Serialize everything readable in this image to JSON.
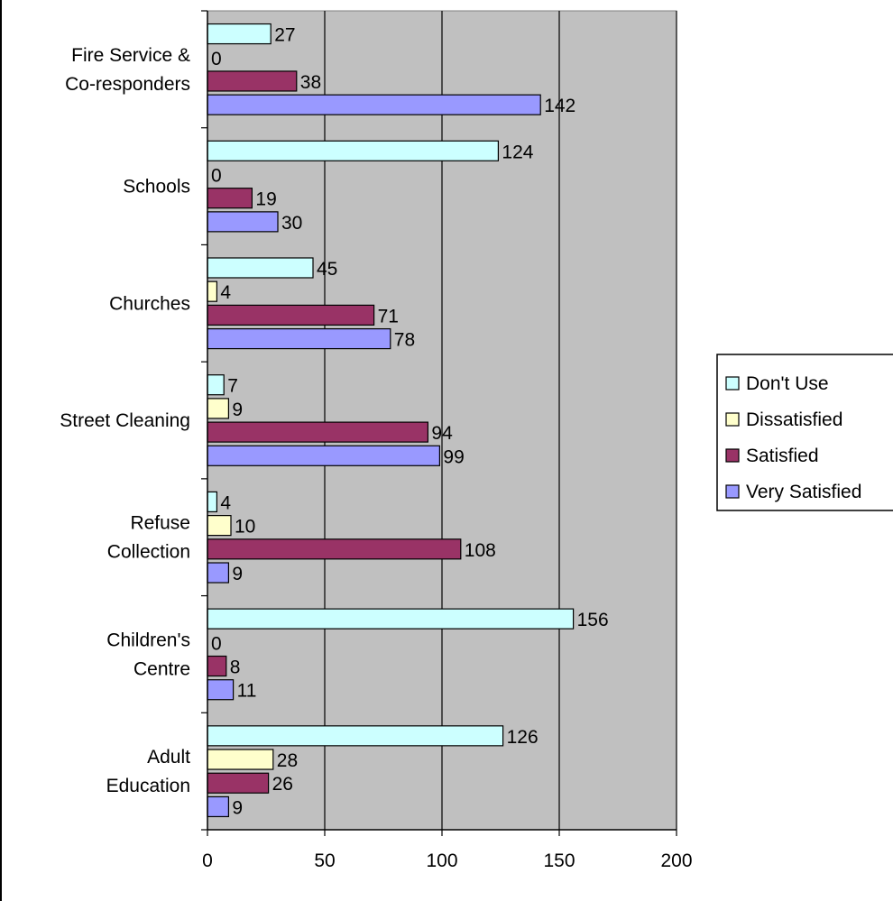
{
  "chart_data": {
    "type": "bar",
    "orientation": "horizontal",
    "title": "",
    "xlabel": "",
    "ylabel": "",
    "xlim": [
      0,
      200
    ],
    "x_ticks": [
      "0",
      "50",
      "100",
      "150",
      "200"
    ],
    "grid": true,
    "legend_position": "right",
    "categories": [
      [
        "Fire Service &",
        "Co-responders"
      ],
      [
        "Schools"
      ],
      [
        "Churches"
      ],
      [
        "Street Cleaning"
      ],
      [
        "Refuse",
        "Collection"
      ],
      [
        "Children's",
        "Centre"
      ],
      [
        "Adult",
        "Education"
      ]
    ],
    "series": [
      {
        "name": "Don't Use",
        "color": "#ccffff",
        "values": [
          27,
          124,
          45,
          7,
          4,
          156,
          126
        ]
      },
      {
        "name": "Dissatisfied",
        "color": "#ffffcc",
        "values": [
          0,
          0,
          4,
          9,
          10,
          0,
          28
        ]
      },
      {
        "name": "Satisfied",
        "color": "#993366",
        "values": [
          38,
          19,
          71,
          94,
          108,
          8,
          26
        ]
      },
      {
        "name": "Very Satisfied",
        "color": "#9999ff",
        "values": [
          142,
          30,
          78,
          99,
          9,
          11,
          9
        ]
      }
    ],
    "plot_background": "#c0c0c0"
  }
}
